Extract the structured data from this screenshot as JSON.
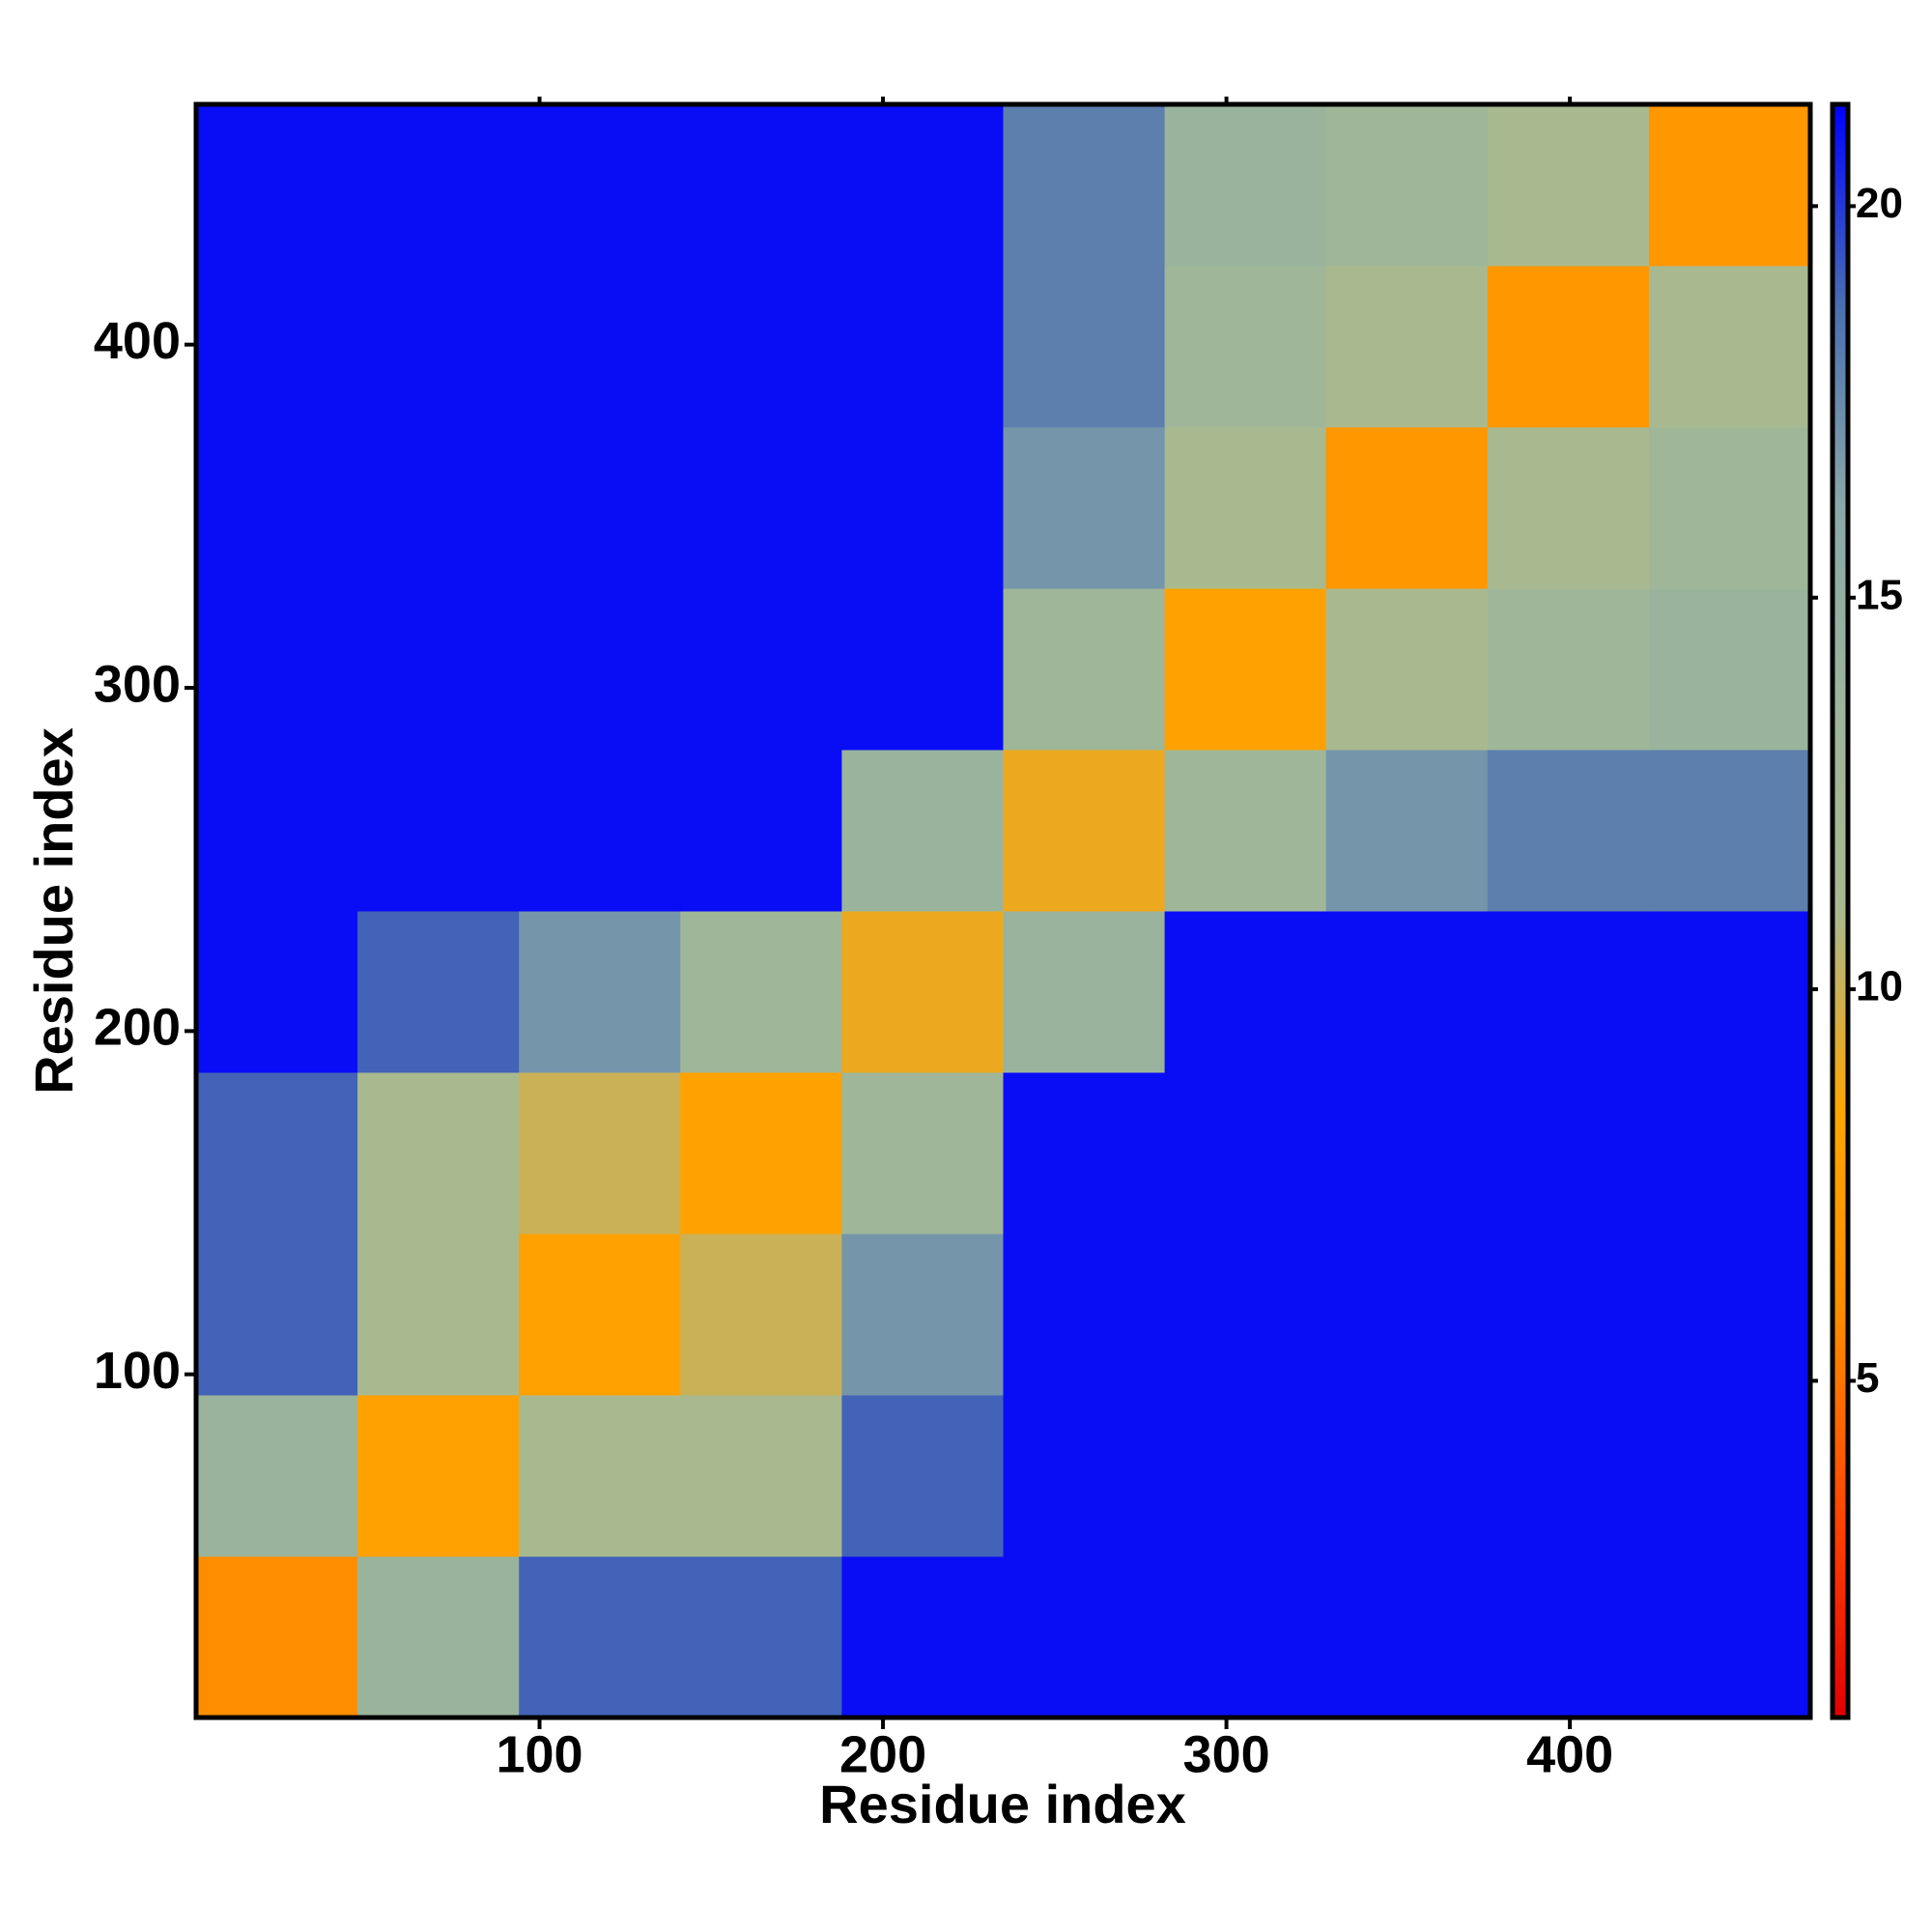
{
  "chart_data": {
    "type": "heatmap",
    "xlabel": "Residue index",
    "ylabel": "Residue index",
    "xlim": [
      0,
      470
    ],
    "ylim": [
      0,
      470
    ],
    "xticks": [
      100,
      200,
      300,
      400
    ],
    "yticks": [
      100,
      200,
      300,
      400
    ],
    "xbins": [
      0,
      47,
      94,
      141,
      188,
      235,
      282,
      329,
      376,
      423,
      470
    ],
    "ybins": [
      0,
      47,
      94,
      141,
      188,
      235,
      282,
      329,
      376,
      423,
      470
    ],
    "values": [
      [
        6,
        14,
        19,
        19,
        21,
        21,
        21,
        21,
        21,
        21
      ],
      [
        14,
        8,
        11,
        11,
        19,
        21,
        21,
        21,
        21,
        21
      ],
      [
        19,
        11,
        8,
        10,
        17,
        21,
        21,
        21,
        21,
        21
      ],
      [
        19,
        11,
        10,
        8,
        13,
        21,
        21,
        21,
        21,
        21
      ],
      [
        21,
        19,
        17,
        13,
        9,
        14,
        21,
        21,
        21,
        21
      ],
      [
        21,
        21,
        21,
        21,
        14,
        9,
        13,
        17,
        18,
        18
      ],
      [
        21,
        21,
        21,
        21,
        21,
        13,
        8,
        11,
        13,
        14
      ],
      [
        21,
        21,
        21,
        21,
        21,
        17,
        11,
        7,
        11,
        13
      ],
      [
        21,
        21,
        21,
        21,
        21,
        18,
        13,
        11,
        7,
        11
      ],
      [
        21,
        21,
        21,
        21,
        21,
        18,
        14,
        13,
        11,
        7
      ]
    ],
    "clim": [
      0.7,
      21.3
    ],
    "cticks": [
      5,
      10,
      15,
      20
    ],
    "colors": [
      "#e00000",
      "#ff4500",
      "#ff8c00",
      "#ffa500",
      "#a9b98f",
      "#9db59a",
      "#8aa8a8",
      "#4a6fb0",
      "#0000ff"
    ]
  }
}
